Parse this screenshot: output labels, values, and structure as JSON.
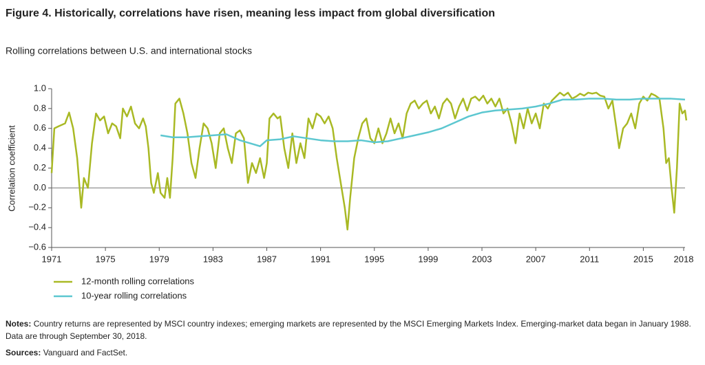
{
  "chart_data": {
    "type": "line",
    "title": "Figure 4. Historically, correlations have risen, meaning less impact from global diversification",
    "subtitle": "Rolling correlations between U.S. and international stocks",
    "y_label": "Correlation coefficient",
    "xlim": [
      1971,
      2018
    ],
    "xticks": [
      1971,
      1975,
      1979,
      1983,
      1987,
      1991,
      1995,
      1999,
      2003,
      2007,
      2011,
      2015,
      2018
    ],
    "ylim": [
      -0.6,
      1.0
    ],
    "yticks": [
      {
        "value": 1,
        "label": "1.0"
      },
      0.8,
      0.6,
      0.4,
      0.2,
      {
        "value": 0,
        "label": "0.0"
      },
      {
        "value": -0.2,
        "label": "−0.2"
      },
      {
        "value": -0.4,
        "label": "−0.4"
      },
      {
        "value": -0.6,
        "label": "−0.6"
      }
    ],
    "grid": false,
    "series": [
      {
        "name": "12-month rolling correlations",
        "color": "#a9b924",
        "x": [
          1971.0,
          1971.2,
          1971.5,
          1972.0,
          1972.3,
          1972.6,
          1972.9,
          1973.2,
          1973.4,
          1973.7,
          1974.0,
          1974.3,
          1974.6,
          1974.9,
          1975.2,
          1975.5,
          1975.8,
          1976.1,
          1976.3,
          1976.6,
          1976.9,
          1977.2,
          1977.5,
          1977.8,
          1978.0,
          1978.2,
          1978.4,
          1978.6,
          1978.9,
          1979.1,
          1979.4,
          1979.6,
          1979.8,
          1980.0,
          1980.2,
          1980.5,
          1980.8,
          1981.1,
          1981.4,
          1981.7,
          1982.0,
          1982.3,
          1982.6,
          1982.9,
          1983.2,
          1983.5,
          1983.8,
          1984.1,
          1984.4,
          1984.7,
          1985.0,
          1985.3,
          1985.6,
          1985.9,
          1986.2,
          1986.5,
          1986.8,
          1987.0,
          1987.2,
          1987.5,
          1987.8,
          1988.0,
          1988.3,
          1988.6,
          1988.9,
          1989.2,
          1989.5,
          1989.8,
          1990.1,
          1990.4,
          1990.7,
          1991.0,
          1991.3,
          1991.6,
          1991.9,
          1992.2,
          1992.5,
          1992.8,
          1993.0,
          1993.2,
          1993.5,
          1993.8,
          1994.1,
          1994.4,
          1994.7,
          1995.0,
          1995.3,
          1995.6,
          1995.9,
          1996.2,
          1996.5,
          1996.8,
          1997.1,
          1997.4,
          1997.7,
          1998.0,
          1998.3,
          1998.6,
          1998.9,
          1999.2,
          1999.5,
          1999.8,
          2000.1,
          2000.4,
          2000.7,
          2001.0,
          2001.3,
          2001.6,
          2001.9,
          2002.2,
          2002.5,
          2002.8,
          2003.1,
          2003.4,
          2003.7,
          2004.0,
          2004.3,
          2004.6,
          2004.9,
          2005.2,
          2005.5,
          2005.8,
          2006.1,
          2006.4,
          2006.7,
          2007.0,
          2007.3,
          2007.6,
          2007.9,
          2008.2,
          2008.5,
          2008.8,
          2009.1,
          2009.4,
          2009.7,
          2010.0,
          2010.3,
          2010.6,
          2010.9,
          2011.2,
          2011.5,
          2011.8,
          2012.1,
          2012.4,
          2012.7,
          2013.0,
          2013.2,
          2013.5,
          2013.8,
          2014.1,
          2014.4,
          2014.7,
          2015.0,
          2015.3,
          2015.6,
          2015.9,
          2016.2,
          2016.5,
          2016.7,
          2016.9,
          2017.1,
          2017.3,
          2017.5,
          2017.7,
          2017.9,
          2018.1,
          2018.2
        ],
        "values": [
          0.15,
          0.6,
          0.62,
          0.65,
          0.76,
          0.6,
          0.3,
          -0.2,
          0.1,
          0.0,
          0.45,
          0.75,
          0.68,
          0.72,
          0.55,
          0.65,
          0.62,
          0.5,
          0.8,
          0.72,
          0.82,
          0.65,
          0.6,
          0.7,
          0.62,
          0.4,
          0.05,
          -0.05,
          0.15,
          -0.05,
          -0.1,
          0.1,
          -0.1,
          0.3,
          0.85,
          0.9,
          0.75,
          0.55,
          0.25,
          0.1,
          0.4,
          0.65,
          0.6,
          0.45,
          0.2,
          0.55,
          0.6,
          0.4,
          0.25,
          0.55,
          0.58,
          0.5,
          0.05,
          0.25,
          0.15,
          0.3,
          0.1,
          0.25,
          0.7,
          0.75,
          0.7,
          0.72,
          0.4,
          0.2,
          0.55,
          0.25,
          0.45,
          0.3,
          0.7,
          0.6,
          0.75,
          0.72,
          0.65,
          0.72,
          0.6,
          0.3,
          0.05,
          -0.2,
          -0.42,
          -0.1,
          0.3,
          0.5,
          0.65,
          0.7,
          0.5,
          0.45,
          0.6,
          0.45,
          0.55,
          0.7,
          0.55,
          0.65,
          0.5,
          0.75,
          0.85,
          0.88,
          0.8,
          0.85,
          0.88,
          0.75,
          0.82,
          0.7,
          0.85,
          0.9,
          0.85,
          0.7,
          0.82,
          0.9,
          0.78,
          0.9,
          0.92,
          0.88,
          0.93,
          0.85,
          0.9,
          0.82,
          0.9,
          0.75,
          0.8,
          0.65,
          0.45,
          0.75,
          0.6,
          0.8,
          0.65,
          0.75,
          0.6,
          0.85,
          0.8,
          0.88,
          0.92,
          0.96,
          0.93,
          0.96,
          0.9,
          0.92,
          0.95,
          0.93,
          0.96,
          0.95,
          0.96,
          0.93,
          0.92,
          0.8,
          0.88,
          0.6,
          0.4,
          0.6,
          0.65,
          0.75,
          0.6,
          0.85,
          0.92,
          0.88,
          0.95,
          0.93,
          0.9,
          0.6,
          0.25,
          0.3,
          0.0,
          -0.25,
          0.2,
          0.85,
          0.75,
          0.78,
          0.68
        ]
      },
      {
        "name": "10-year rolling correlations",
        "color": "#5cc7d0",
        "x": [
          1979.1,
          1980,
          1981,
          1982,
          1983,
          1984,
          1985,
          1986,
          1986.5,
          1987,
          1988,
          1989,
          1990,
          1991,
          1992,
          1993,
          1994,
          1995,
          1996,
          1997,
          1998,
          1999,
          2000,
          2001,
          2002,
          2003,
          2004,
          2005,
          2006,
          2007,
          2008,
          2009,
          2010,
          2011,
          2012,
          2013,
          2014,
          2015,
          2016,
          2017,
          2018.1
        ],
        "values": [
          0.53,
          0.51,
          0.51,
          0.52,
          0.53,
          0.54,
          0.48,
          0.44,
          0.42,
          0.48,
          0.49,
          0.52,
          0.5,
          0.48,
          0.47,
          0.47,
          0.48,
          0.46,
          0.47,
          0.5,
          0.53,
          0.56,
          0.6,
          0.66,
          0.72,
          0.76,
          0.78,
          0.79,
          0.8,
          0.82,
          0.85,
          0.89,
          0.89,
          0.9,
          0.9,
          0.89,
          0.89,
          0.9,
          0.9,
          0.9,
          0.89
        ]
      }
    ]
  },
  "notes": {
    "label": "Notes:",
    "text": "Country returns are represented by MSCI country indexes; emerging markets are represented by the MSCI Emerging Markets Index. Emerging-market data began in January 1988. Data are through September 30, 2018."
  },
  "sources": {
    "label": "Sources:",
    "text": "Vanguard and FactSet."
  }
}
